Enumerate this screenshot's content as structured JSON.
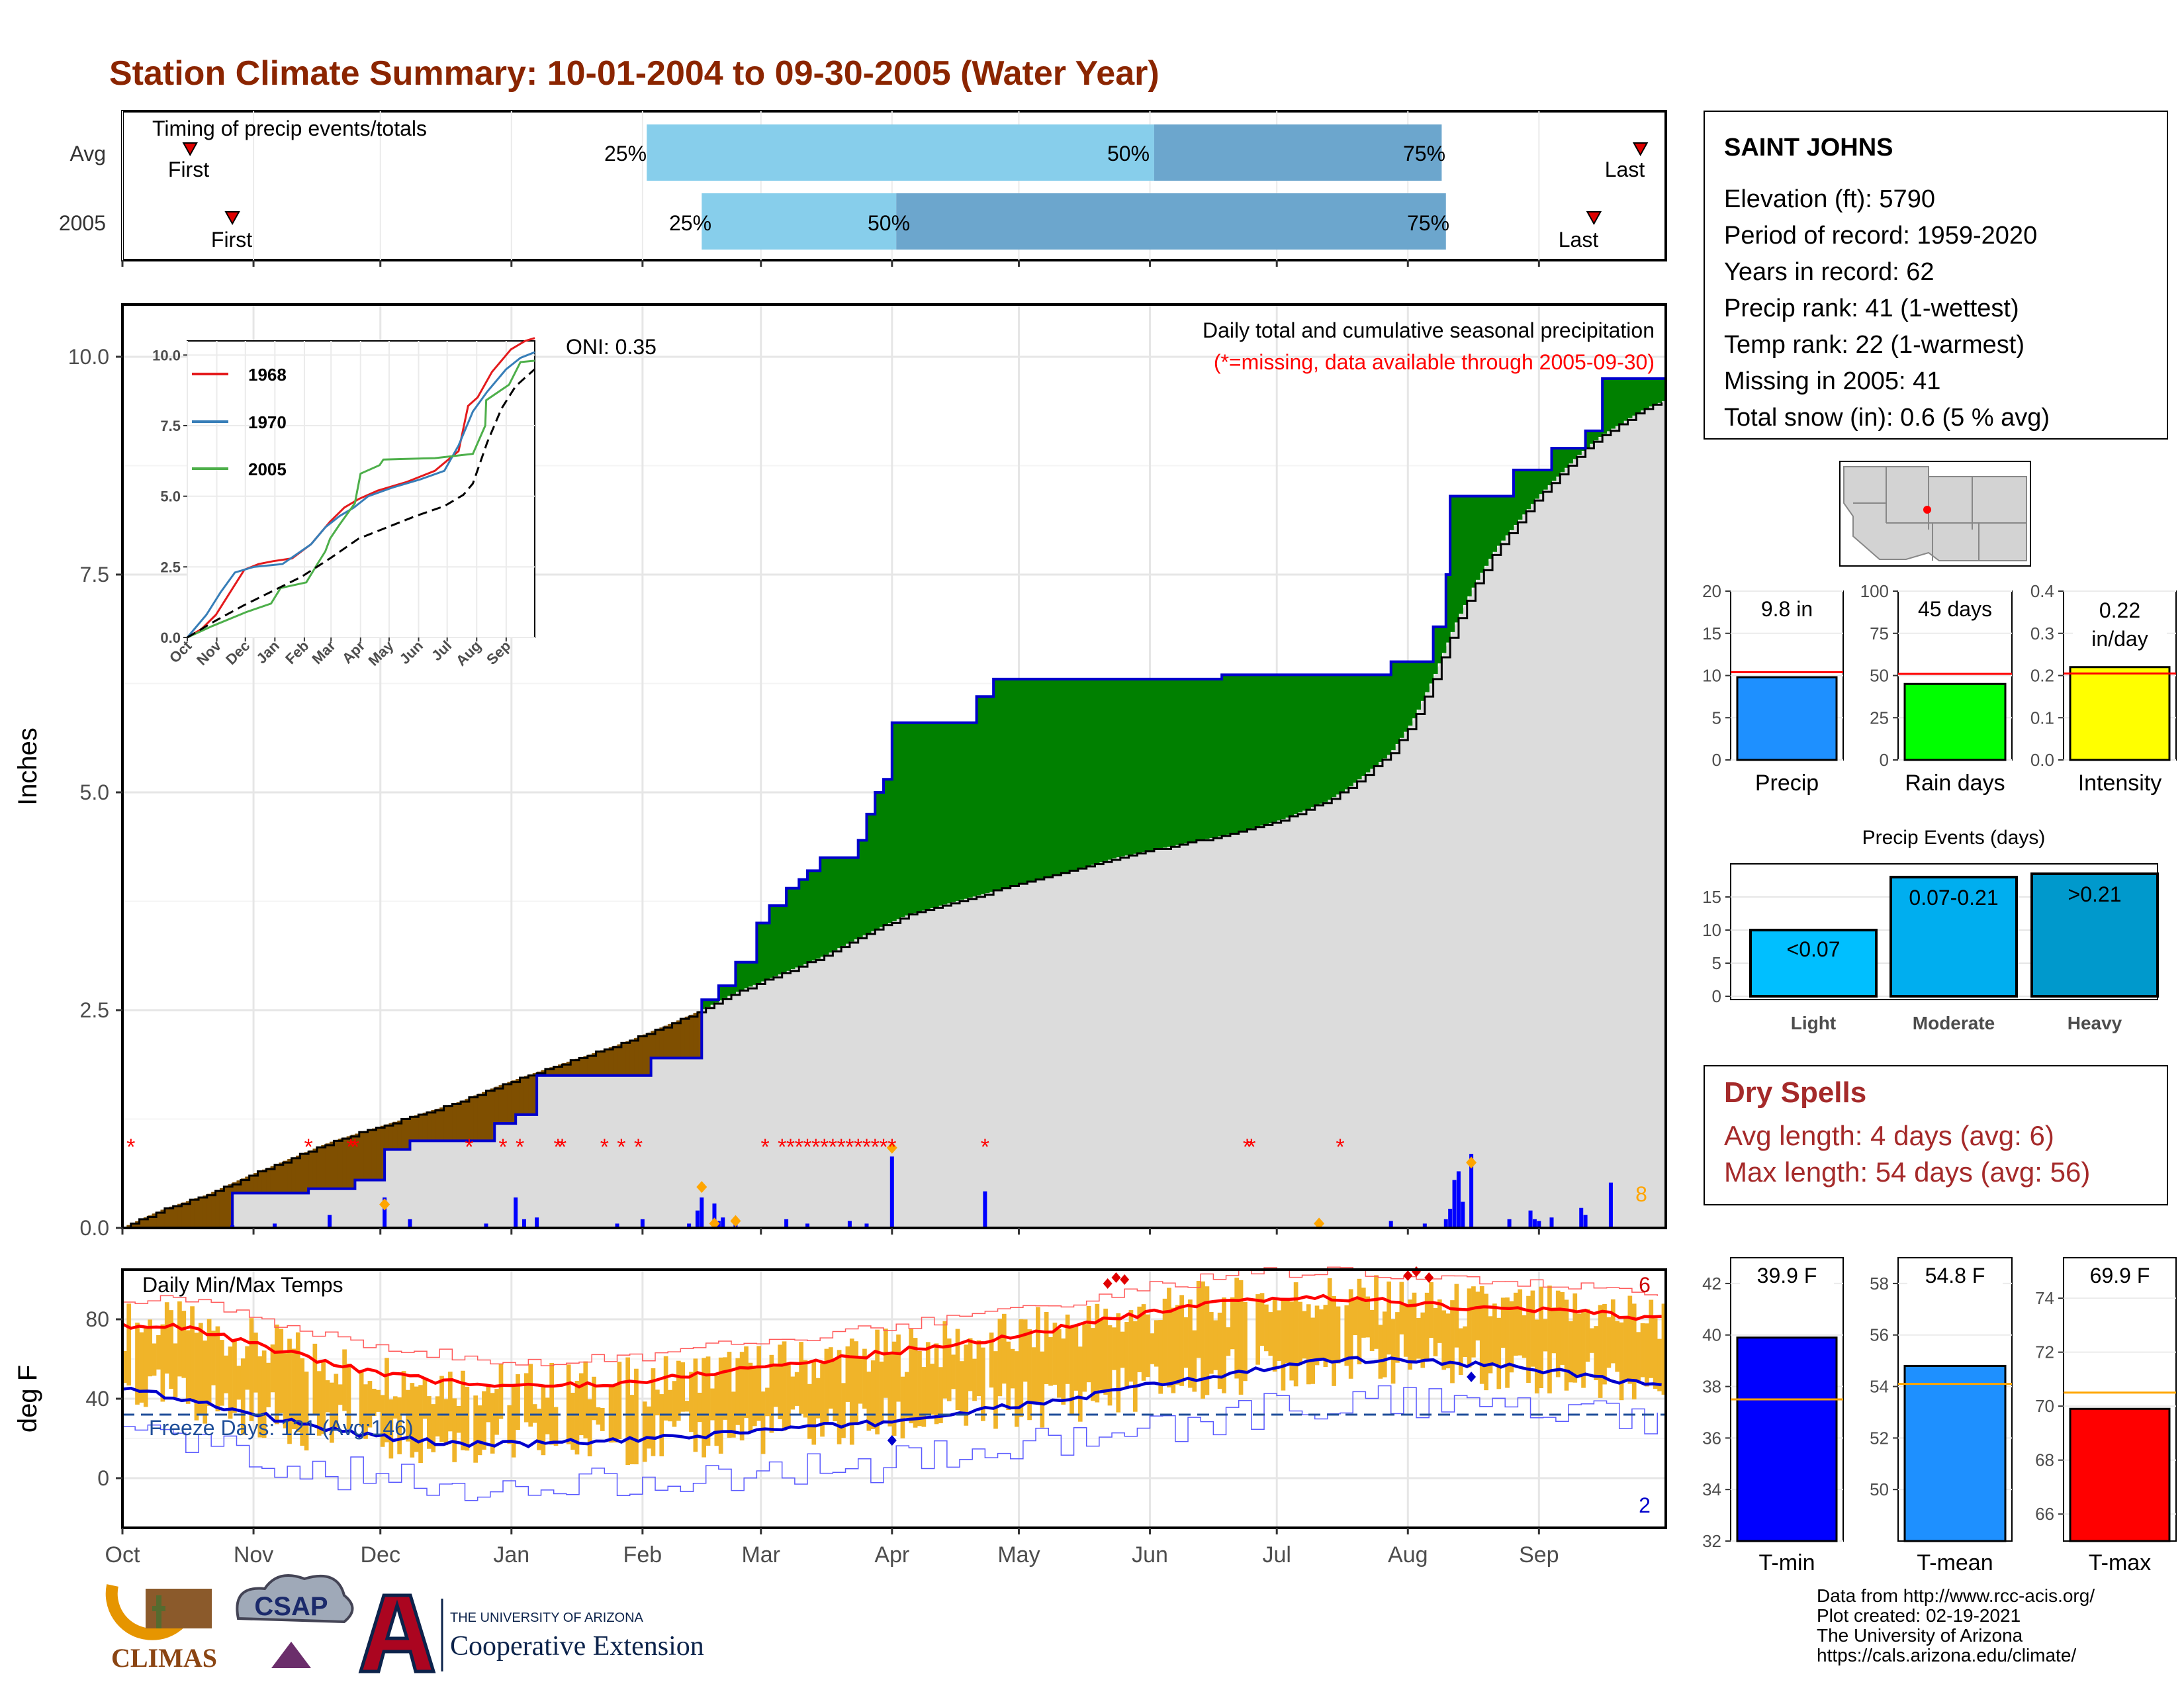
{
  "title": "Station Climate Summary: 10-01-2004 to 09-30-2005 (Water Year)",
  "colors": {
    "title": "#8B2500",
    "wet": "#008000",
    "dry": "#7F4F00",
    "avg_fill": "#DCDCDC",
    "obs_line": "#0000CD",
    "tmax": "#FF0000",
    "tmin": "#0000CD",
    "temp_bar": "#F0B429",
    "dry_spell_text": "#A52A2A",
    "q_light": "#87CEEB",
    "q_dark": "#6CA6CD"
  },
  "timing": {
    "label": "Timing of precip events/totals",
    "rows": [
      {
        "name": "Avg",
        "first_label": "First",
        "last_label": "Last",
        "first_day": 16,
        "last_day": 359,
        "q25": 124,
        "q50": 244,
        "q75": 312,
        "q25_label": "25%",
        "q50_label": "50%",
        "q75_label": "75%"
      },
      {
        "name": "2005",
        "first_label": "First",
        "last_label": "Last",
        "first_day": 26,
        "last_day": 348,
        "q25": 137,
        "q50": 183,
        "q75": 313,
        "q25_label": "25%",
        "q50_label": "50%",
        "q75_label": "75%"
      }
    ]
  },
  "precip_panel": {
    "ylabel": "Inches",
    "yticks": [
      "0.0",
      "2.5",
      "5.0",
      "7.5",
      "10.0"
    ],
    "ylim": [
      0,
      10.6
    ],
    "subtitle1": "Daily total and cumulative seasonal precipitation",
    "subtitle2": "(*=missing, data available through 2005-09-30)",
    "oni": "ONI: 0.35",
    "max_daily_count": "8"
  },
  "inset": {
    "yticks": [
      "0.0",
      "2.5",
      "5.0",
      "7.5",
      "10.0"
    ],
    "xticks": [
      "Oct",
      "Nov",
      "Dec",
      "Jan",
      "Feb",
      "Mar",
      "Apr",
      "May",
      "Jun",
      "Jul",
      "Aug",
      "Sep"
    ],
    "legend": [
      {
        "name": "1968",
        "color": "#E41A1C"
      },
      {
        "name": "1970",
        "color": "#377EB8"
      },
      {
        "name": "2005",
        "color": "#4DAF4A"
      }
    ]
  },
  "temp_panel": {
    "title": "Daily Min/Max Temps",
    "ylabel": "deg F",
    "yticks": [
      "0",
      "40",
      "80"
    ],
    "freeze_label": "Freeze Days: 121 (Avg:146)",
    "freeze_value": 32,
    "max_records": "6",
    "min_records": "2"
  },
  "months": [
    "Oct",
    "Nov",
    "Dec",
    "Jan",
    "Feb",
    "Mar",
    "Apr",
    "May",
    "Jun",
    "Jul",
    "Aug",
    "Sep"
  ],
  "station": {
    "name": "SAINT JOHNS",
    "lines": [
      "Elevation (ft): 5790",
      "Period of record: 1959-2020",
      "Years in record: 62",
      "Precip rank: 41 (1-wettest)",
      "Temp rank: 22 (1-warmest)",
      "Missing in 2005: 41",
      "Total snow (in): 0.6 (5 % avg)"
    ]
  },
  "summary_bars": [
    {
      "category": "Precip",
      "value": 9.8,
      "avg": 10.4,
      "label": "9.8 in",
      "ymax": 20,
      "ticks": [
        "0",
        "5",
        "10",
        "15",
        "20"
      ],
      "tickvals": [
        0,
        5,
        10,
        15,
        20
      ],
      "color": "#1E90FF"
    },
    {
      "category": "Rain days",
      "value": 45,
      "avg": 51,
      "label": "45 days",
      "ymax": 100,
      "ticks": [
        "0",
        "25",
        "50",
        "75",
        "100"
      ],
      "tickvals": [
        0,
        25,
        50,
        75,
        100
      ],
      "color": "#00FF00"
    },
    {
      "category": "Intensity",
      "value": 0.22,
      "avg": 0.205,
      "label": "0.22 in/day",
      "ymax": 0.4,
      "ticks": [
        "0.0",
        "0.1",
        "0.2",
        "0.3",
        "0.4"
      ],
      "tickvals": [
        0,
        0.1,
        0.2,
        0.3,
        0.4
      ],
      "color": "#FFFF00"
    }
  ],
  "precip_events": {
    "title": "Precip Events (days)",
    "yticks": [
      "0",
      "5",
      "10",
      "15"
    ],
    "categories": [
      "Light",
      "Moderate",
      "Heavy"
    ],
    "values": [
      10,
      18,
      18.5
    ],
    "labels": [
      "<0.07",
      "0.07-0.21",
      ">0.21"
    ],
    "colors": [
      "#00BFFF",
      "#00AEEF",
      "#0099CC"
    ]
  },
  "dry_spells": {
    "title": "Dry Spells",
    "line1": "Avg length: 4 days (avg: 6)",
    "line2": "Max length: 54 days (avg: 56)"
  },
  "temp_bars": [
    {
      "category": "T-min",
      "value": 39.9,
      "avg": 37.5,
      "label": "39.9 F",
      "ymin": 32,
      "ymax": 43,
      "ticks": [
        "32",
        "34",
        "36",
        "38",
        "40",
        "42"
      ],
      "tickvals": [
        32,
        34,
        36,
        38,
        40,
        42
      ],
      "color": "#0000FF"
    },
    {
      "category": "T-mean",
      "value": 54.8,
      "avg": 54.1,
      "label": "54.8 F",
      "ymin": 48,
      "ymax": 59,
      "ticks": [
        "50",
        "52",
        "54",
        "56",
        "58"
      ],
      "tickvals": [
        50,
        52,
        54,
        56,
        58
      ],
      "color": "#1E90FF"
    },
    {
      "category": "T-max",
      "value": 69.9,
      "avg": 70.5,
      "label": "69.9 F",
      "ymin": 65,
      "ymax": 75.5,
      "ticks": [
        "66",
        "68",
        "70",
        "72",
        "74"
      ],
      "tickvals": [
        66,
        68,
        70,
        72,
        74
      ],
      "color": "#FF0000"
    }
  ],
  "footer": {
    "lines": [
      "Data from http://www.rcc-acis.org/",
      "Plot created: 02-19-2021",
      "The University of Arizona",
      "https://cals.arizona.edu/climate/"
    ]
  },
  "logos": {
    "climas": "CLIMAS",
    "csap": "CSAP",
    "ua_top": "THE UNIVERSITY OF ARIZONA",
    "ua_bottom": "Cooperative Extension"
  },
  "chart_data": [
    {
      "type": "area",
      "title": "Daily total and cumulative seasonal precipitation",
      "ylabel": "Inches",
      "ylim": [
        0,
        10.6
      ],
      "x_unit": "day of water year (0 = Oct 1)",
      "observed_cumulative": [
        [
          0,
          0
        ],
        [
          26,
          0
        ],
        [
          26,
          0.4
        ],
        [
          44,
          0.4
        ],
        [
          44,
          0.45
        ],
        [
          55,
          0.45
        ],
        [
          55,
          0.55
        ],
        [
          62,
          0.55
        ],
        [
          62,
          0.9
        ],
        [
          68,
          0.9
        ],
        [
          68,
          1.0
        ],
        [
          88,
          1.0
        ],
        [
          88,
          1.2
        ],
        [
          93,
          1.2
        ],
        [
          93,
          1.3
        ],
        [
          98,
          1.3
        ],
        [
          98,
          1.75
        ],
        [
          125,
          1.75
        ],
        [
          125,
          1.95
        ],
        [
          137,
          1.95
        ],
        [
          137,
          2.62
        ],
        [
          141,
          2.62
        ],
        [
          141,
          2.78
        ],
        [
          145,
          2.78
        ],
        [
          145,
          3.05
        ],
        [
          150,
          3.05
        ],
        [
          150,
          3.5
        ],
        [
          153,
          3.5
        ],
        [
          153,
          3.7
        ],
        [
          157,
          3.7
        ],
        [
          157,
          3.9
        ],
        [
          160,
          3.9
        ],
        [
          160,
          4.0
        ],
        [
          162,
          4.0
        ],
        [
          162,
          4.1
        ],
        [
          165,
          4.1
        ],
        [
          165,
          4.25
        ],
        [
          174,
          4.25
        ],
        [
          174,
          4.45
        ],
        [
          176,
          4.45
        ],
        [
          176,
          4.75
        ],
        [
          178,
          4.75
        ],
        [
          178,
          5.0
        ],
        [
          180,
          5.0
        ],
        [
          180,
          5.15
        ],
        [
          182,
          5.15
        ],
        [
          182,
          5.8
        ],
        [
          202,
          5.8
        ],
        [
          202,
          6.1
        ],
        [
          206,
          6.1
        ],
        [
          206,
          6.3
        ],
        [
          260,
          6.3
        ],
        [
          260,
          6.35
        ],
        [
          300,
          6.35
        ],
        [
          300,
          6.5
        ],
        [
          310,
          6.5
        ],
        [
          310,
          6.9
        ],
        [
          313,
          6.9
        ],
        [
          313,
          7.5
        ],
        [
          314,
          7.5
        ],
        [
          314,
          8.4
        ],
        [
          329,
          8.4
        ],
        [
          329,
          8.7
        ],
        [
          338,
          8.7
        ],
        [
          338,
          8.95
        ],
        [
          346,
          8.95
        ],
        [
          346,
          9.15
        ],
        [
          350,
          9.15
        ],
        [
          350,
          9.75
        ],
        [
          365,
          9.75
        ]
      ],
      "average_cumulative": [
        [
          0,
          0
        ],
        [
          10,
          0.22
        ],
        [
          20,
          0.38
        ],
        [
          30,
          0.6
        ],
        [
          40,
          0.8
        ],
        [
          50,
          1.0
        ],
        [
          60,
          1.15
        ],
        [
          70,
          1.3
        ],
        [
          80,
          1.45
        ],
        [
          90,
          1.65
        ],
        [
          100,
          1.82
        ],
        [
          110,
          1.98
        ],
        [
          120,
          2.15
        ],
        [
          130,
          2.35
        ],
        [
          137,
          2.5
        ],
        [
          145,
          2.7
        ],
        [
          155,
          2.9
        ],
        [
          165,
          3.1
        ],
        [
          175,
          3.35
        ],
        [
          185,
          3.58
        ],
        [
          195,
          3.72
        ],
        [
          205,
          3.85
        ],
        [
          215,
          3.98
        ],
        [
          225,
          4.1
        ],
        [
          235,
          4.25
        ],
        [
          245,
          4.35
        ],
        [
          255,
          4.45
        ],
        [
          265,
          4.55
        ],
        [
          275,
          4.7
        ],
        [
          285,
          4.9
        ],
        [
          290,
          5.05
        ],
        [
          295,
          5.25
        ],
        [
          300,
          5.45
        ],
        [
          305,
          5.8
        ],
        [
          310,
          6.3
        ],
        [
          315,
          6.9
        ],
        [
          320,
          7.4
        ],
        [
          325,
          7.8
        ],
        [
          330,
          8.1
        ],
        [
          335,
          8.4
        ],
        [
          340,
          8.65
        ],
        [
          345,
          8.9
        ],
        [
          350,
          9.1
        ],
        [
          355,
          9.25
        ],
        [
          360,
          9.4
        ],
        [
          365,
          9.5
        ]
      ],
      "daily_precip": [
        [
          26,
          0.03
        ],
        [
          36,
          0.05
        ],
        [
          49,
          0.15
        ],
        [
          62,
          0.35
        ],
        [
          68,
          0.1
        ],
        [
          86,
          0.05
        ],
        [
          93,
          0.35
        ],
        [
          95,
          0.1
        ],
        [
          98,
          0.12
        ],
        [
          117,
          0.05
        ],
        [
          123,
          0.1
        ],
        [
          134,
          0.05
        ],
        [
          136,
          0.2
        ],
        [
          137,
          0.35
        ],
        [
          140,
          0.28
        ],
        [
          141,
          0.08
        ],
        [
          142,
          0.12
        ],
        [
          145,
          0.1
        ],
        [
          157,
          0.1
        ],
        [
          162,
          0.05
        ],
        [
          172,
          0.08
        ],
        [
          176,
          0.05
        ],
        [
          182,
          0.82
        ],
        [
          204,
          0.42
        ],
        [
          283,
          0.05
        ],
        [
          300,
          0.08
        ],
        [
          308,
          0.05
        ],
        [
          313,
          0.1
        ],
        [
          314,
          0.22
        ],
        [
          315,
          0.55
        ],
        [
          316,
          0.65
        ],
        [
          317,
          0.3
        ],
        [
          319,
          0.85
        ],
        [
          328,
          0.1
        ],
        [
          333,
          0.2
        ],
        [
          334,
          0.1
        ],
        [
          335,
          0.08
        ],
        [
          338,
          0.12
        ],
        [
          345,
          0.23
        ],
        [
          346,
          0.15
        ],
        [
          352,
          0.52
        ]
      ],
      "missing_days": [
        2,
        44,
        54,
        55,
        82,
        90,
        94,
        103,
        104,
        114,
        118,
        122,
        152,
        156,
        158,
        160,
        162,
        164,
        166,
        168,
        170,
        172,
        174,
        176,
        178,
        180,
        182,
        204,
        266,
        267,
        288
      ]
    },
    {
      "type": "line",
      "title": "Daily Min/Max Temps",
      "ylabel": "deg F",
      "ylim": [
        -25,
        105
      ],
      "x_unit": "day of water year",
      "avg_tmax": [
        [
          0,
          77
        ],
        [
          15,
          76
        ],
        [
          30,
          68
        ],
        [
          45,
          60
        ],
        [
          60,
          53
        ],
        [
          75,
          49
        ],
        [
          90,
          46
        ],
        [
          105,
          47
        ],
        [
          120,
          48
        ],
        [
          135,
          52
        ],
        [
          150,
          56
        ],
        [
          165,
          59
        ],
        [
          180,
          63
        ],
        [
          195,
          67
        ],
        [
          210,
          71
        ],
        [
          225,
          77
        ],
        [
          240,
          82
        ],
        [
          255,
          87
        ],
        [
          270,
          90
        ],
        [
          285,
          91
        ],
        [
          300,
          89
        ],
        [
          315,
          86
        ],
        [
          330,
          85
        ],
        [
          345,
          84
        ],
        [
          365,
          80
        ]
      ],
      "avg_tmin": [
        [
          0,
          45
        ],
        [
          15,
          40
        ],
        [
          30,
          33
        ],
        [
          45,
          26
        ],
        [
          60,
          21
        ],
        [
          75,
          18
        ],
        [
          90,
          17
        ],
        [
          105,
          18
        ],
        [
          120,
          19
        ],
        [
          135,
          21
        ],
        [
          150,
          24
        ],
        [
          165,
          26
        ],
        [
          180,
          28
        ],
        [
          195,
          32
        ],
        [
          210,
          36
        ],
        [
          225,
          40
        ],
        [
          240,
          46
        ],
        [
          255,
          50
        ],
        [
          270,
          55
        ],
        [
          285,
          59
        ],
        [
          300,
          60
        ],
        [
          315,
          58
        ],
        [
          330,
          56
        ],
        [
          345,
          52
        ],
        [
          365,
          46
        ]
      ],
      "freeze_line": 32
    }
  ]
}
